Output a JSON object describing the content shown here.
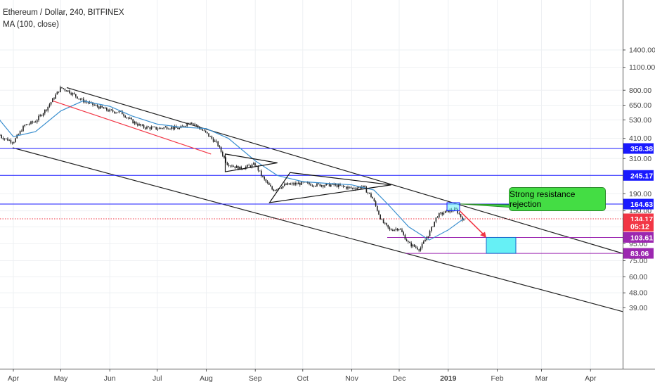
{
  "legend": {
    "title": "Ethereum / Dollar, 240, BITFINEX",
    "indicator": "MA (100, close)"
  },
  "chart_data": {
    "type": "line",
    "title": "Ethereum / Dollar, 240, BITFINEX",
    "indicator": "MA (100, close)",
    "y_scale": "log",
    "ylim": [
      36,
      1500
    ],
    "y_ticks": [
      1400,
      1100,
      800,
      650,
      530,
      410,
      310,
      190,
      150,
      120,
      95,
      75,
      60,
      48,
      39
    ],
    "x_ticks": [
      "Apr",
      "May",
      "Jun",
      "Jul",
      "Aug",
      "Sep",
      "Oct",
      "Nov",
      "Dec",
      "2019",
      "Feb",
      "Mar",
      "Apr"
    ],
    "price_series": {
      "name": "ETH/USD",
      "x": [
        "2018-03-17",
        "2018-03-24",
        "2018-04-01",
        "2018-04-08",
        "2018-04-15",
        "2018-04-22",
        "2018-05-01",
        "2018-05-06",
        "2018-05-14",
        "2018-05-22",
        "2018-06-01",
        "2018-06-08",
        "2018-06-15",
        "2018-06-22",
        "2018-07-01",
        "2018-07-08",
        "2018-07-15",
        "2018-07-22",
        "2018-08-01",
        "2018-08-08",
        "2018-08-14",
        "2018-08-22",
        "2018-09-01",
        "2018-09-06",
        "2018-09-12",
        "2018-09-20",
        "2018-10-01",
        "2018-10-10",
        "2018-10-20",
        "2018-11-01",
        "2018-11-08",
        "2018-11-14",
        "2018-11-20",
        "2018-11-25",
        "2018-12-01",
        "2018-12-07",
        "2018-12-14",
        "2018-12-20",
        "2018-12-25",
        "2019-01-01",
        "2019-01-06",
        "2019-01-11"
      ],
      "y": [
        600,
        420,
        390,
        490,
        520,
        620,
        830,
        790,
        700,
        650,
        600,
        590,
        520,
        480,
        470,
        480,
        470,
        520,
        440,
        380,
        290,
        270,
        285,
        235,
        200,
        215,
        220,
        215,
        215,
        205,
        210,
        180,
        130,
        115,
        118,
        95,
        88,
        110,
        140,
        150,
        152,
        130
      ]
    },
    "ma_series": {
      "name": "MA (100, close)",
      "x": [
        "2018-03-17",
        "2018-03-24",
        "2018-04-01",
        "2018-04-15",
        "2018-05-01",
        "2018-05-15",
        "2018-06-01",
        "2018-06-15",
        "2018-07-01",
        "2018-07-15",
        "2018-08-01",
        "2018-08-15",
        "2018-09-01",
        "2018-09-15",
        "2018-10-01",
        "2018-10-15",
        "2018-11-01",
        "2018-11-15",
        "2018-11-25",
        "2018-12-07",
        "2018-12-20",
        "2019-01-01",
        "2019-01-11"
      ],
      "y": [
        650,
        520,
        420,
        450,
        600,
        690,
        640,
        560,
        500,
        480,
        470,
        410,
        300,
        245,
        225,
        220,
        215,
        200,
        160,
        120,
        100,
        115,
        135
      ]
    },
    "horizontal_levels": [
      {
        "label": "356.38",
        "value": 356.38,
        "color": "#1a1aff",
        "style": "solid"
      },
      {
        "label": "245.17",
        "value": 245.17,
        "color": "#1a1aff",
        "style": "solid"
      },
      {
        "label": "164.63",
        "value": 164.63,
        "color": "#1a1aff",
        "style": "solid"
      },
      {
        "label": "134.17",
        "value": 134.17,
        "color": "#f23645",
        "style": "dotted"
      },
      {
        "label": "05:12",
        "value": 121,
        "color": "#f23645",
        "style": "none"
      },
      {
        "label": "103.61",
        "value": 103.61,
        "color": "#9c27b0",
        "style": "solid"
      },
      {
        "label": "83.06",
        "value": 83.06,
        "color": "#9c27b0",
        "style": "solid"
      }
    ],
    "annotations": [
      {
        "type": "callout",
        "text": "Strong resistance rejection",
        "color": "#44dd44"
      },
      {
        "type": "target-box",
        "color": "#66f0f5"
      }
    ]
  }
}
